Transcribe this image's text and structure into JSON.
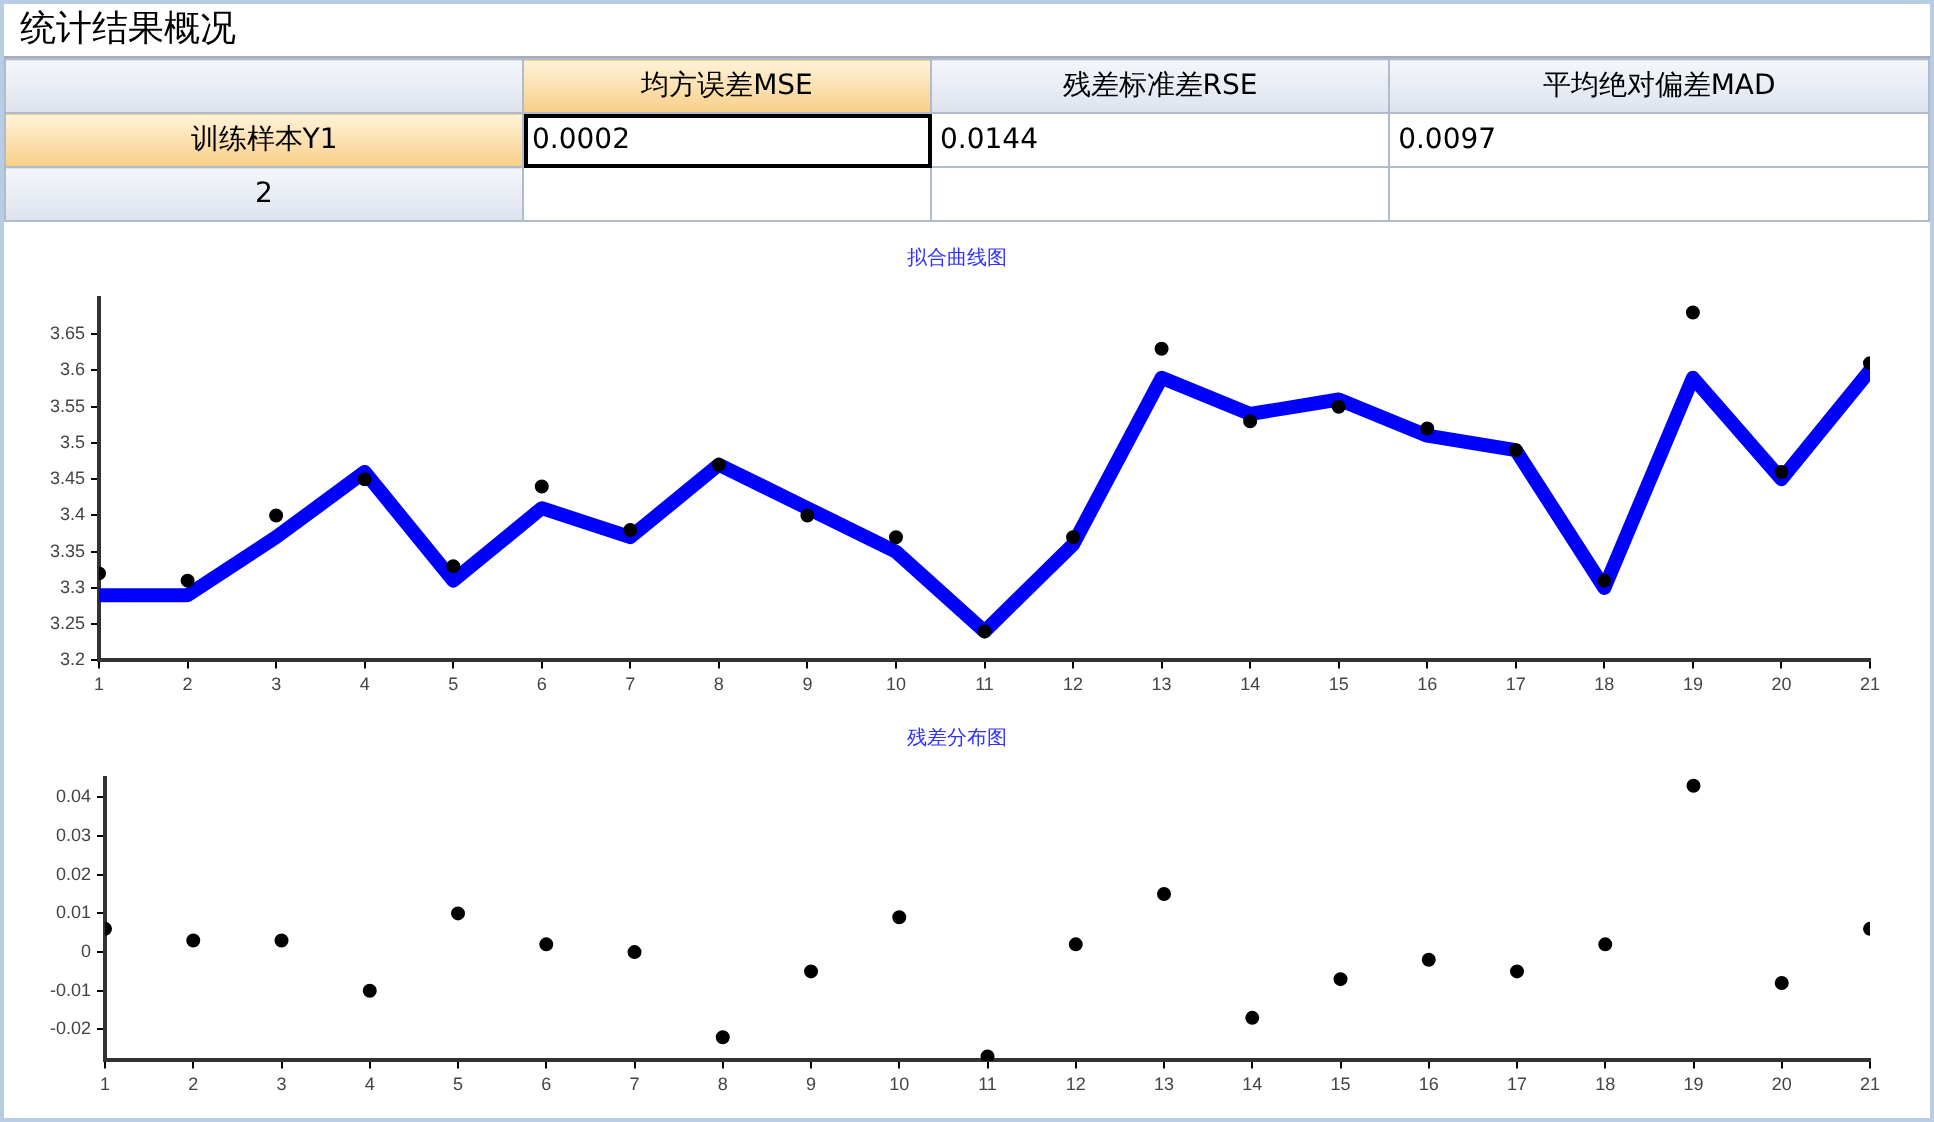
{
  "chart_data": [
    {
      "type": "other",
      "title": "统计结果概况",
      "categories": [
        "均方误差MSE",
        "残差标准差RSE",
        "平均绝对偏差MAD"
      ],
      "y_categories": [
        "训练样本Y1",
        "2"
      ],
      "cell_labels": [
        [
          "0.0002",
          "0.0144",
          "0.0097"
        ],
        [
          null,
          null,
          null
        ]
      ]
    },
    {
      "type": "line",
      "title": "拟合曲线图",
      "x": [
        1,
        2,
        3,
        4,
        5,
        6,
        7,
        8,
        9,
        10,
        11,
        12,
        13,
        14,
        15,
        16,
        17,
        18,
        19,
        20,
        21
      ],
      "series": [
        {
          "type": "line",
          "color": "#0000ff",
          "values": [
            3.29,
            3.29,
            3.37,
            3.46,
            3.31,
            3.41,
            3.37,
            3.47,
            3.41,
            3.35,
            3.24,
            3.36,
            3.59,
            3.54,
            3.56,
            3.51,
            3.49,
            3.3,
            3.59,
            3.45,
            3.6
          ]
        },
        {
          "type": "scatter",
          "color": "#000000",
          "marker": "circle",
          "values": [
            3.32,
            3.31,
            3.4,
            3.45,
            3.33,
            3.44,
            3.38,
            3.47,
            3.4,
            3.37,
            3.24,
            3.37,
            3.63,
            3.53,
            3.55,
            3.52,
            3.49,
            3.31,
            3.68,
            3.46,
            3.61
          ]
        }
      ],
      "xlim": [
        1,
        21
      ],
      "xticks": [
        1,
        2,
        3,
        4,
        5,
        6,
        7,
        8,
        9,
        10,
        11,
        12,
        13,
        14,
        15,
        16,
        17,
        18,
        19,
        20,
        21
      ],
      "ylim": [
        3.2,
        3.7
      ],
      "yticks": [
        3.2,
        3.25,
        3.3,
        3.35,
        3.4,
        3.45,
        3.5,
        3.55,
        3.6,
        3.65
      ]
    },
    {
      "type": "scatter",
      "title": "残差分布图",
      "x": [
        1,
        2,
        3,
        4,
        5,
        6,
        7,
        8,
        9,
        10,
        11,
        12,
        13,
        14,
        15,
        16,
        17,
        18,
        19,
        20,
        21
      ],
      "color": "#000000",
      "values": [
        0.006,
        0.003,
        0.003,
        -0.01,
        0.01,
        0.002,
        0.0,
        -0.022,
        -0.005,
        0.009,
        -0.027,
        0.002,
        0.015,
        -0.017,
        -0.007,
        -0.002,
        -0.005,
        0.002,
        0.043,
        -0.008,
        0.006
      ],
      "xlim": [
        1,
        21
      ],
      "xticks": [
        1,
        2,
        3,
        4,
        5,
        6,
        7,
        8,
        9,
        10,
        11,
        12,
        13,
        14,
        15,
        16,
        17,
        18,
        19,
        20,
        21
      ],
      "ylim": [
        -0.028,
        0.045
      ],
      "yticks": [
        -0.02,
        -0.01,
        0,
        0.01,
        0.02,
        0.03,
        0.04
      ],
      "marker": "circle"
    }
  ]
}
